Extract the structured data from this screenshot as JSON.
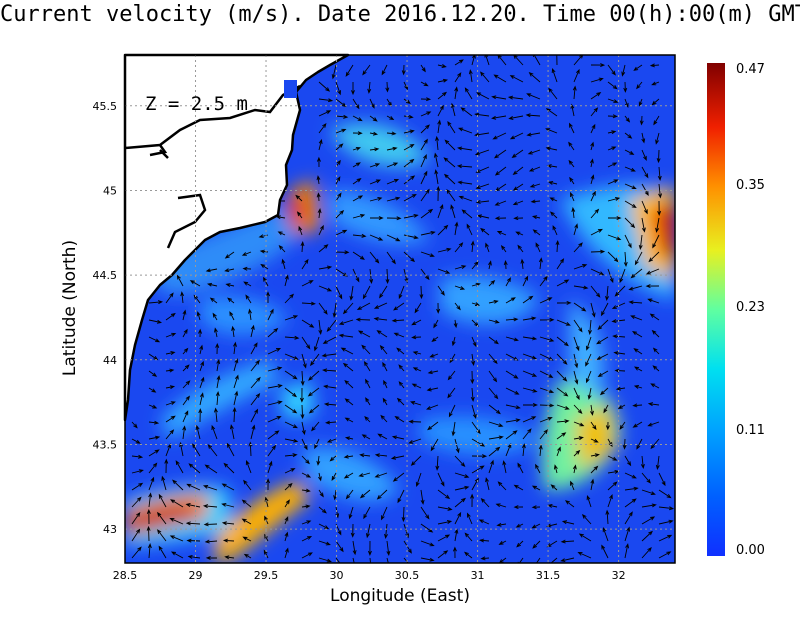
{
  "title": "Current velocity (m/s). Date 2016.12.20. Time 00(h):00(m) GMT",
  "depth_label": "Z = 2.5 m",
  "x_axis": {
    "label": "Longitude (East)",
    "ticks": [
      "28.5",
      "29",
      "29.5",
      "30",
      "30.5",
      "31",
      "31.5",
      "32"
    ],
    "range": [
      28.5,
      32.4
    ]
  },
  "y_axis": {
    "label": "Latitude (North)",
    "ticks": [
      "43",
      "43.5",
      "44",
      "44.5",
      "45",
      "45.5"
    ],
    "range": [
      42.8,
      45.8
    ]
  },
  "colorbar": {
    "ticks": [
      "0.47",
      "0.35",
      "0.23",
      "0.11",
      "0.00"
    ],
    "colors": [
      "#7a0000",
      "#e00000",
      "#ff8800",
      "#f0e000",
      "#80ff80",
      "#00e0ff",
      "#0080ff",
      "#0030ff",
      "#1040e0"
    ]
  },
  "colors": {
    "sea_base": "#1a4cf0",
    "land": "#ffffff",
    "coast": "#000000"
  }
}
